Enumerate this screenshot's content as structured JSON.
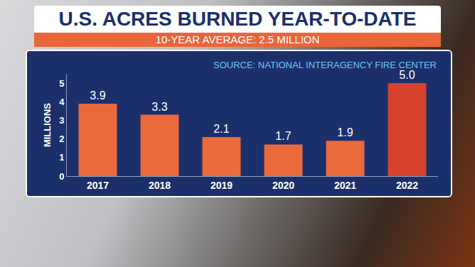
{
  "chart_data": {
    "type": "bar",
    "title": "U.S. ACRES BURNED YEAR-TO-DATE",
    "subtitle": "10-YEAR AVERAGE: 2.5 MILLION",
    "annotations": [
      "SOURCE: NATIONAL INTERAGENCY FIRE CENTER"
    ],
    "y_label": "MILLIONS",
    "categories": [
      "2017",
      "2018",
      "2019",
      "2020",
      "2021",
      "2022"
    ],
    "values": [
      3.9,
      3.3,
      2.1,
      1.7,
      1.9,
      5.0
    ],
    "value_labels": [
      "3.9",
      "3.3",
      "2.1",
      "1.7",
      "1.9",
      "5.0"
    ],
    "colors": [
      "#ea6a3c",
      "#ea6a3c",
      "#ea6a3c",
      "#ea6a3c",
      "#ea6a3c",
      "#d7422c"
    ],
    "ylim": [
      0,
      5.5
    ],
    "yticks": [
      0,
      1,
      2,
      3,
      4,
      5
    ],
    "grid": false,
    "data_labels": true
  }
}
